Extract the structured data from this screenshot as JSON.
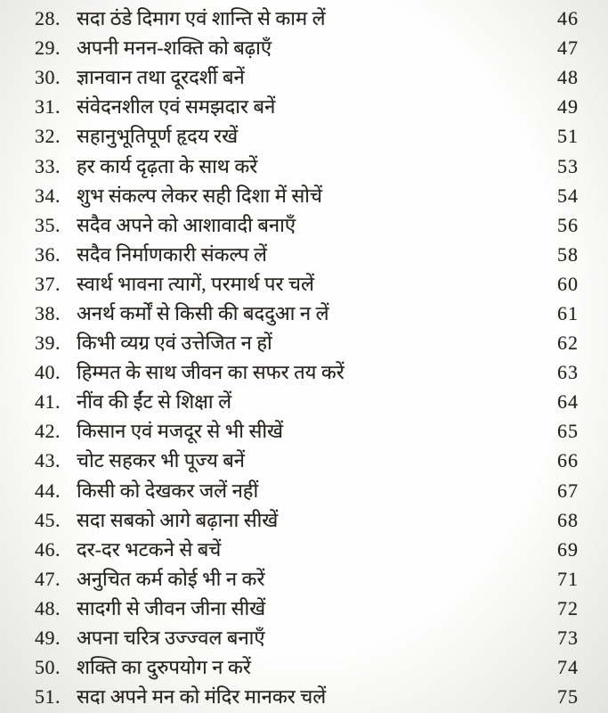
{
  "toc": {
    "entries": [
      {
        "num": "28.",
        "title": "सदा ठंडे दिमाग एवं शान्ति से काम लें",
        "page": "46"
      },
      {
        "num": "29.",
        "title": "अपनी मनन-शक्ति को बढ़ाएँ",
        "page": "47"
      },
      {
        "num": "30.",
        "title": "ज्ञानवान तथा दूरदर्शी बनें",
        "page": "48"
      },
      {
        "num": "31.",
        "title": "संवेदनशील एवं समझदार बनें",
        "page": "49"
      },
      {
        "num": "32.",
        "title": "सहानुभूतिपूर्ण हृदय रखें",
        "page": "51"
      },
      {
        "num": "33.",
        "title": "हर कार्य दृढ़ता के साथ करें",
        "page": "53"
      },
      {
        "num": "34.",
        "title": "शुभ संकल्प लेकर सही दिशा में सोचें",
        "page": "54"
      },
      {
        "num": "35.",
        "title": "सदैव अपने को आशावादी बनाएँ",
        "page": "56"
      },
      {
        "num": "36.",
        "title": "सदैव निर्माणकारी संकल्प लें",
        "page": "58"
      },
      {
        "num": "37.",
        "title": "स्वार्थ भावना त्यागें, परमार्थ पर चलें",
        "page": "60"
      },
      {
        "num": "38.",
        "title": "अनर्थ कर्मों से किसी की बददुआ न लें",
        "page": "61"
      },
      {
        "num": "39.",
        "title": "किभी व्यग्र एवं उत्तेजित न हों",
        "page": "62"
      },
      {
        "num": "40.",
        "title": "हिम्मत के साथ जीवन का सफर तय करें",
        "page": "63"
      },
      {
        "num": "41.",
        "title": "नींव की ईंट से शिक्षा लें",
        "page": "64"
      },
      {
        "num": "42.",
        "title": "किसान एवं मजदूर से भी सीखें",
        "page": "65"
      },
      {
        "num": "43.",
        "title": "चोट सहकर भी पूज्य बनें",
        "page": "66"
      },
      {
        "num": "44.",
        "title": "किसी को देखकर जलें नहीं",
        "page": "67"
      },
      {
        "num": "45.",
        "title": "सदा सबको आगे बढ़ाना सीखें",
        "page": "68"
      },
      {
        "num": "46.",
        "title": "दर-दर भटकने से बचें",
        "page": "69"
      },
      {
        "num": "47.",
        "title": "अनुचित कर्म कोई भी न करें",
        "page": "71"
      },
      {
        "num": "48.",
        "title": "सादगी से जीवन जीना सीखें",
        "page": "72"
      },
      {
        "num": "49.",
        "title": "अपना चरित्र उज्ज्वल बनाएँ",
        "page": "73"
      },
      {
        "num": "50.",
        "title": "शक्ति का दुरुपयोग न करें",
        "page": "74"
      },
      {
        "num": "51.",
        "title": "सदा अपने मन को मंदिर मानकर चलें",
        "page": "75"
      }
    ]
  },
  "colors": {
    "paper": "#f4f4f1",
    "ink": "#26241f"
  }
}
